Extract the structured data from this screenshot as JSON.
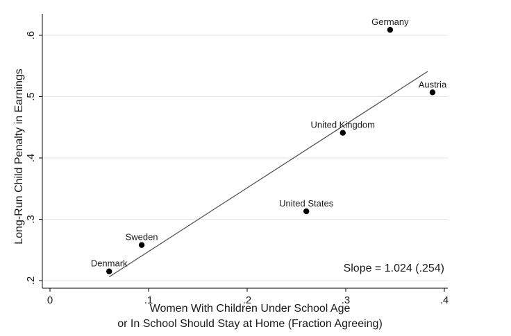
{
  "chart_data": {
    "type": "scatter",
    "xlabel": [
      "Women With Children Under School Age",
      "or In School Should Stay at Home (Fraction Agreeing)"
    ],
    "ylabel": "Long-Run Child Penalty in Earnings",
    "xlim": [
      0,
      0.4
    ],
    "ylim": [
      0.2,
      0.6
    ],
    "x_ticks": [
      0,
      0.1,
      0.2,
      0.3,
      0.4
    ],
    "x_tick_labels": [
      "0",
      ".1",
      ".2",
      ".3",
      ".4"
    ],
    "y_ticks": [
      0.2,
      0.3,
      0.4,
      0.5,
      0.6
    ],
    "y_tick_labels": [
      ".2",
      ".3",
      ".4",
      ".5",
      ".6"
    ],
    "grid": "horizontal",
    "points": [
      {
        "label": "Denmark",
        "x": 0.06,
        "y": 0.215
      },
      {
        "label": "Sweden",
        "x": 0.093,
        "y": 0.258
      },
      {
        "label": "United States",
        "x": 0.26,
        "y": 0.313
      },
      {
        "label": "United Kingdom",
        "x": 0.297,
        "y": 0.441
      },
      {
        "label": "Germany",
        "x": 0.345,
        "y": 0.609
      },
      {
        "label": "Austria",
        "x": 0.388,
        "y": 0.507
      }
    ],
    "fit_line": {
      "x": [
        0.06,
        0.383
      ],
      "y": [
        0.206,
        0.541
      ]
    },
    "annotation": "Slope = 1.024 (.254)",
    "colors": {
      "points": "#000000",
      "fit_line": "#555555",
      "grid": "#e6e6e6",
      "axis": "#000000"
    }
  }
}
